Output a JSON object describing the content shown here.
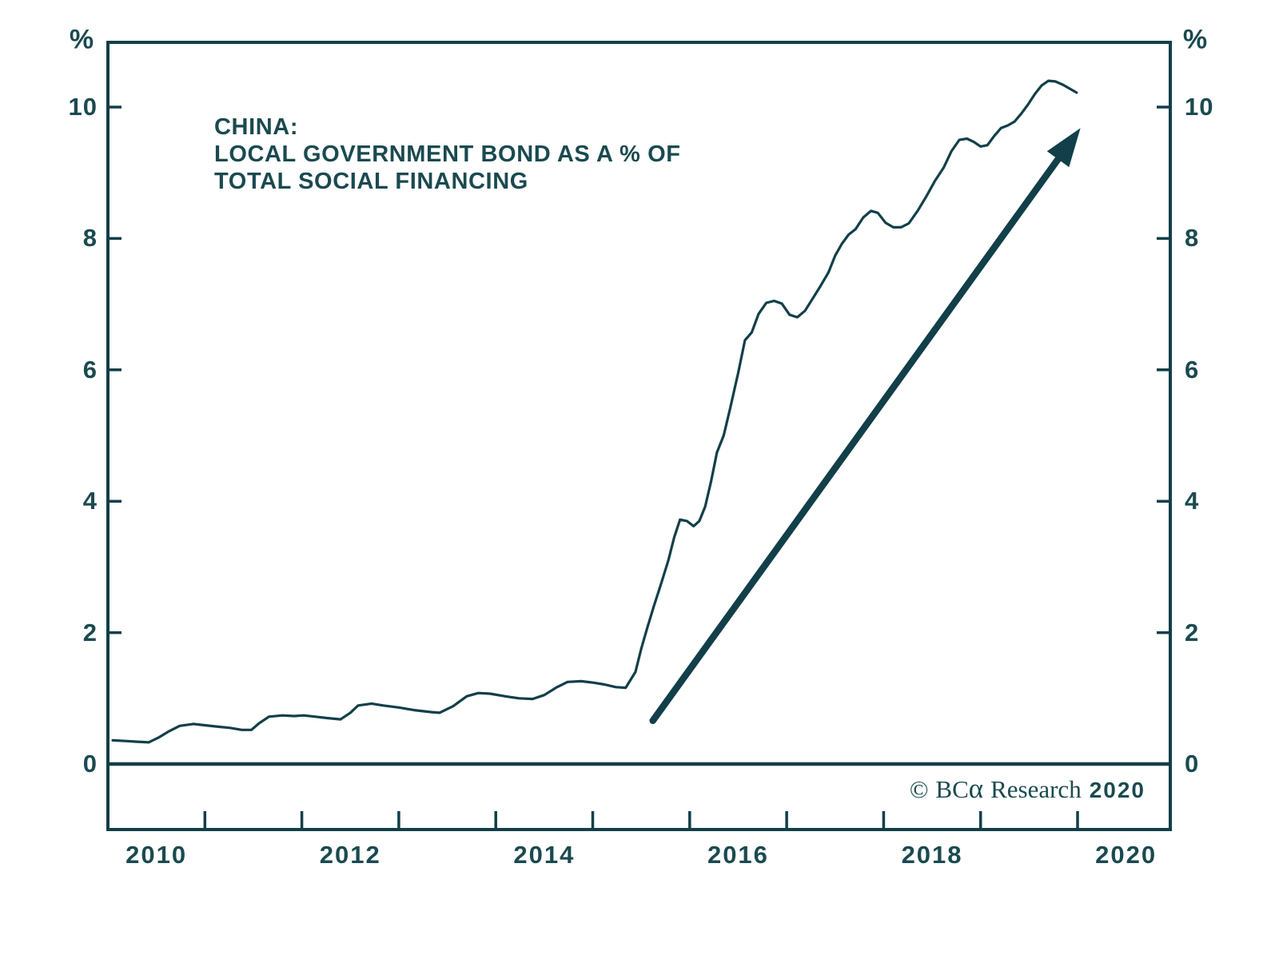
{
  "colors": {
    "text": "#1a4a50",
    "line": "#123f49",
    "background": "#ffffff"
  },
  "watermark": {
    "symbol": "©",
    "brand": "BC",
    "alpha": "α",
    "text": "Research",
    "year": "2020"
  },
  "chart_data": {
    "type": "line",
    "title": "CHINA: LOCAL GOVERNMENT BOND AS A % OF TOTAL SOCIAL FINANCING",
    "title_lines": [
      "CHINA:",
      "LOCAL GOVERNMENT BOND AS A % OF",
      "TOTAL SOCIAL FINANCING"
    ],
    "grid": false,
    "legend": "none",
    "y_axis": {
      "unit": "%",
      "sides": [
        "left",
        "right"
      ],
      "ticks": [
        {
          "value": 0,
          "label": "0"
        },
        {
          "value": 2,
          "label": "2"
        },
        {
          "value": 4,
          "label": "4"
        },
        {
          "value": 6,
          "label": "6"
        },
        {
          "value": 8,
          "label": "8"
        },
        {
          "value": 10,
          "label": "10"
        }
      ],
      "ylim": [
        -1.0,
        10.99
      ],
      "zero_baseline": true
    },
    "x_axis": {
      "tick_years": [
        2011,
        2012,
        2013,
        2014,
        2015,
        2016,
        2017,
        2018,
        2019,
        2020
      ],
      "labels": [
        {
          "text": "2010",
          "center_year": 2010.5
        },
        {
          "text": "2012",
          "center_year": 2012.5
        },
        {
          "text": "2014",
          "center_year": 2014.5
        },
        {
          "text": "2016",
          "center_year": 2016.5
        },
        {
          "text": "2018",
          "center_year": 2018.5
        },
        {
          "text": "2020",
          "center_year": 2020.5
        }
      ],
      "xlim": [
        2010.0,
        2020.96
      ]
    },
    "series": [
      {
        "name": "Local government bond as a % of total social financing",
        "points": [
          [
            2010.05,
            0.36
          ],
          [
            2010.18,
            0.35
          ],
          [
            2010.3,
            0.34
          ],
          [
            2010.42,
            0.33
          ],
          [
            2010.52,
            0.4
          ],
          [
            2010.62,
            0.49
          ],
          [
            2010.74,
            0.58
          ],
          [
            2010.88,
            0.61
          ],
          [
            2011.0,
            0.59
          ],
          [
            2011.12,
            0.57
          ],
          [
            2011.26,
            0.55
          ],
          [
            2011.38,
            0.52
          ],
          [
            2011.48,
            0.52
          ],
          [
            2011.56,
            0.62
          ],
          [
            2011.66,
            0.72
          ],
          [
            2011.8,
            0.74
          ],
          [
            2011.92,
            0.73
          ],
          [
            2012.02,
            0.74
          ],
          [
            2012.14,
            0.72
          ],
          [
            2012.26,
            0.7
          ],
          [
            2012.4,
            0.68
          ],
          [
            2012.5,
            0.78
          ],
          [
            2012.58,
            0.89
          ],
          [
            2012.72,
            0.92
          ],
          [
            2012.84,
            0.89
          ],
          [
            2013.0,
            0.86
          ],
          [
            2013.16,
            0.82
          ],
          [
            2013.34,
            0.79
          ],
          [
            2013.42,
            0.78
          ],
          [
            2013.56,
            0.88
          ],
          [
            2013.7,
            1.03
          ],
          [
            2013.82,
            1.08
          ],
          [
            2013.94,
            1.07
          ],
          [
            2014.1,
            1.03
          ],
          [
            2014.24,
            1.0
          ],
          [
            2014.38,
            0.99
          ],
          [
            2014.5,
            1.05
          ],
          [
            2014.62,
            1.16
          ],
          [
            2014.74,
            1.25
          ],
          [
            2014.88,
            1.26
          ],
          [
            2015.0,
            1.24
          ],
          [
            2015.12,
            1.21
          ],
          [
            2015.24,
            1.17
          ],
          [
            2015.34,
            1.16
          ],
          [
            2015.44,
            1.4
          ],
          [
            2015.5,
            1.75
          ],
          [
            2015.56,
            2.06
          ],
          [
            2015.63,
            2.4
          ],
          [
            2015.7,
            2.72
          ],
          [
            2015.78,
            3.1
          ],
          [
            2015.84,
            3.45
          ],
          [
            2015.9,
            3.72
          ],
          [
            2015.97,
            3.7
          ],
          [
            2016.04,
            3.62
          ],
          [
            2016.1,
            3.7
          ],
          [
            2016.16,
            3.92
          ],
          [
            2016.22,
            4.3
          ],
          [
            2016.28,
            4.74
          ],
          [
            2016.35,
            5.0
          ],
          [
            2016.42,
            5.43
          ],
          [
            2016.5,
            5.95
          ],
          [
            2016.57,
            6.45
          ],
          [
            2016.64,
            6.57
          ],
          [
            2016.71,
            6.85
          ],
          [
            2016.79,
            7.02
          ],
          [
            2016.87,
            7.05
          ],
          [
            2016.95,
            7.01
          ],
          [
            2017.03,
            6.84
          ],
          [
            2017.11,
            6.8
          ],
          [
            2017.19,
            6.9
          ],
          [
            2017.27,
            7.09
          ],
          [
            2017.35,
            7.28
          ],
          [
            2017.43,
            7.48
          ],
          [
            2017.5,
            7.74
          ],
          [
            2017.57,
            7.92
          ],
          [
            2017.64,
            8.06
          ],
          [
            2017.71,
            8.14
          ],
          [
            2017.79,
            8.32
          ],
          [
            2017.87,
            8.42
          ],
          [
            2017.94,
            8.39
          ],
          [
            2018.02,
            8.24
          ],
          [
            2018.1,
            8.17
          ],
          [
            2018.18,
            8.17
          ],
          [
            2018.26,
            8.23
          ],
          [
            2018.35,
            8.42
          ],
          [
            2018.44,
            8.64
          ],
          [
            2018.53,
            8.88
          ],
          [
            2018.62,
            9.08
          ],
          [
            2018.7,
            9.33
          ],
          [
            2018.78,
            9.5
          ],
          [
            2018.86,
            9.52
          ],
          [
            2018.93,
            9.47
          ],
          [
            2019.0,
            9.4
          ],
          [
            2019.07,
            9.42
          ],
          [
            2019.14,
            9.56
          ],
          [
            2019.21,
            9.68
          ],
          [
            2019.28,
            9.72
          ],
          [
            2019.35,
            9.78
          ],
          [
            2019.42,
            9.9
          ],
          [
            2019.49,
            10.04
          ],
          [
            2019.56,
            10.2
          ],
          [
            2019.63,
            10.33
          ],
          [
            2019.7,
            10.4
          ],
          [
            2019.77,
            10.39
          ],
          [
            2019.85,
            10.34
          ],
          [
            2019.92,
            10.28
          ],
          [
            2019.99,
            10.22
          ]
        ]
      }
    ],
    "annotations": {
      "trend_arrow": {
        "from": [
          2015.62,
          0.66
        ],
        "to": [
          2020.03,
          9.68
        ]
      }
    }
  }
}
